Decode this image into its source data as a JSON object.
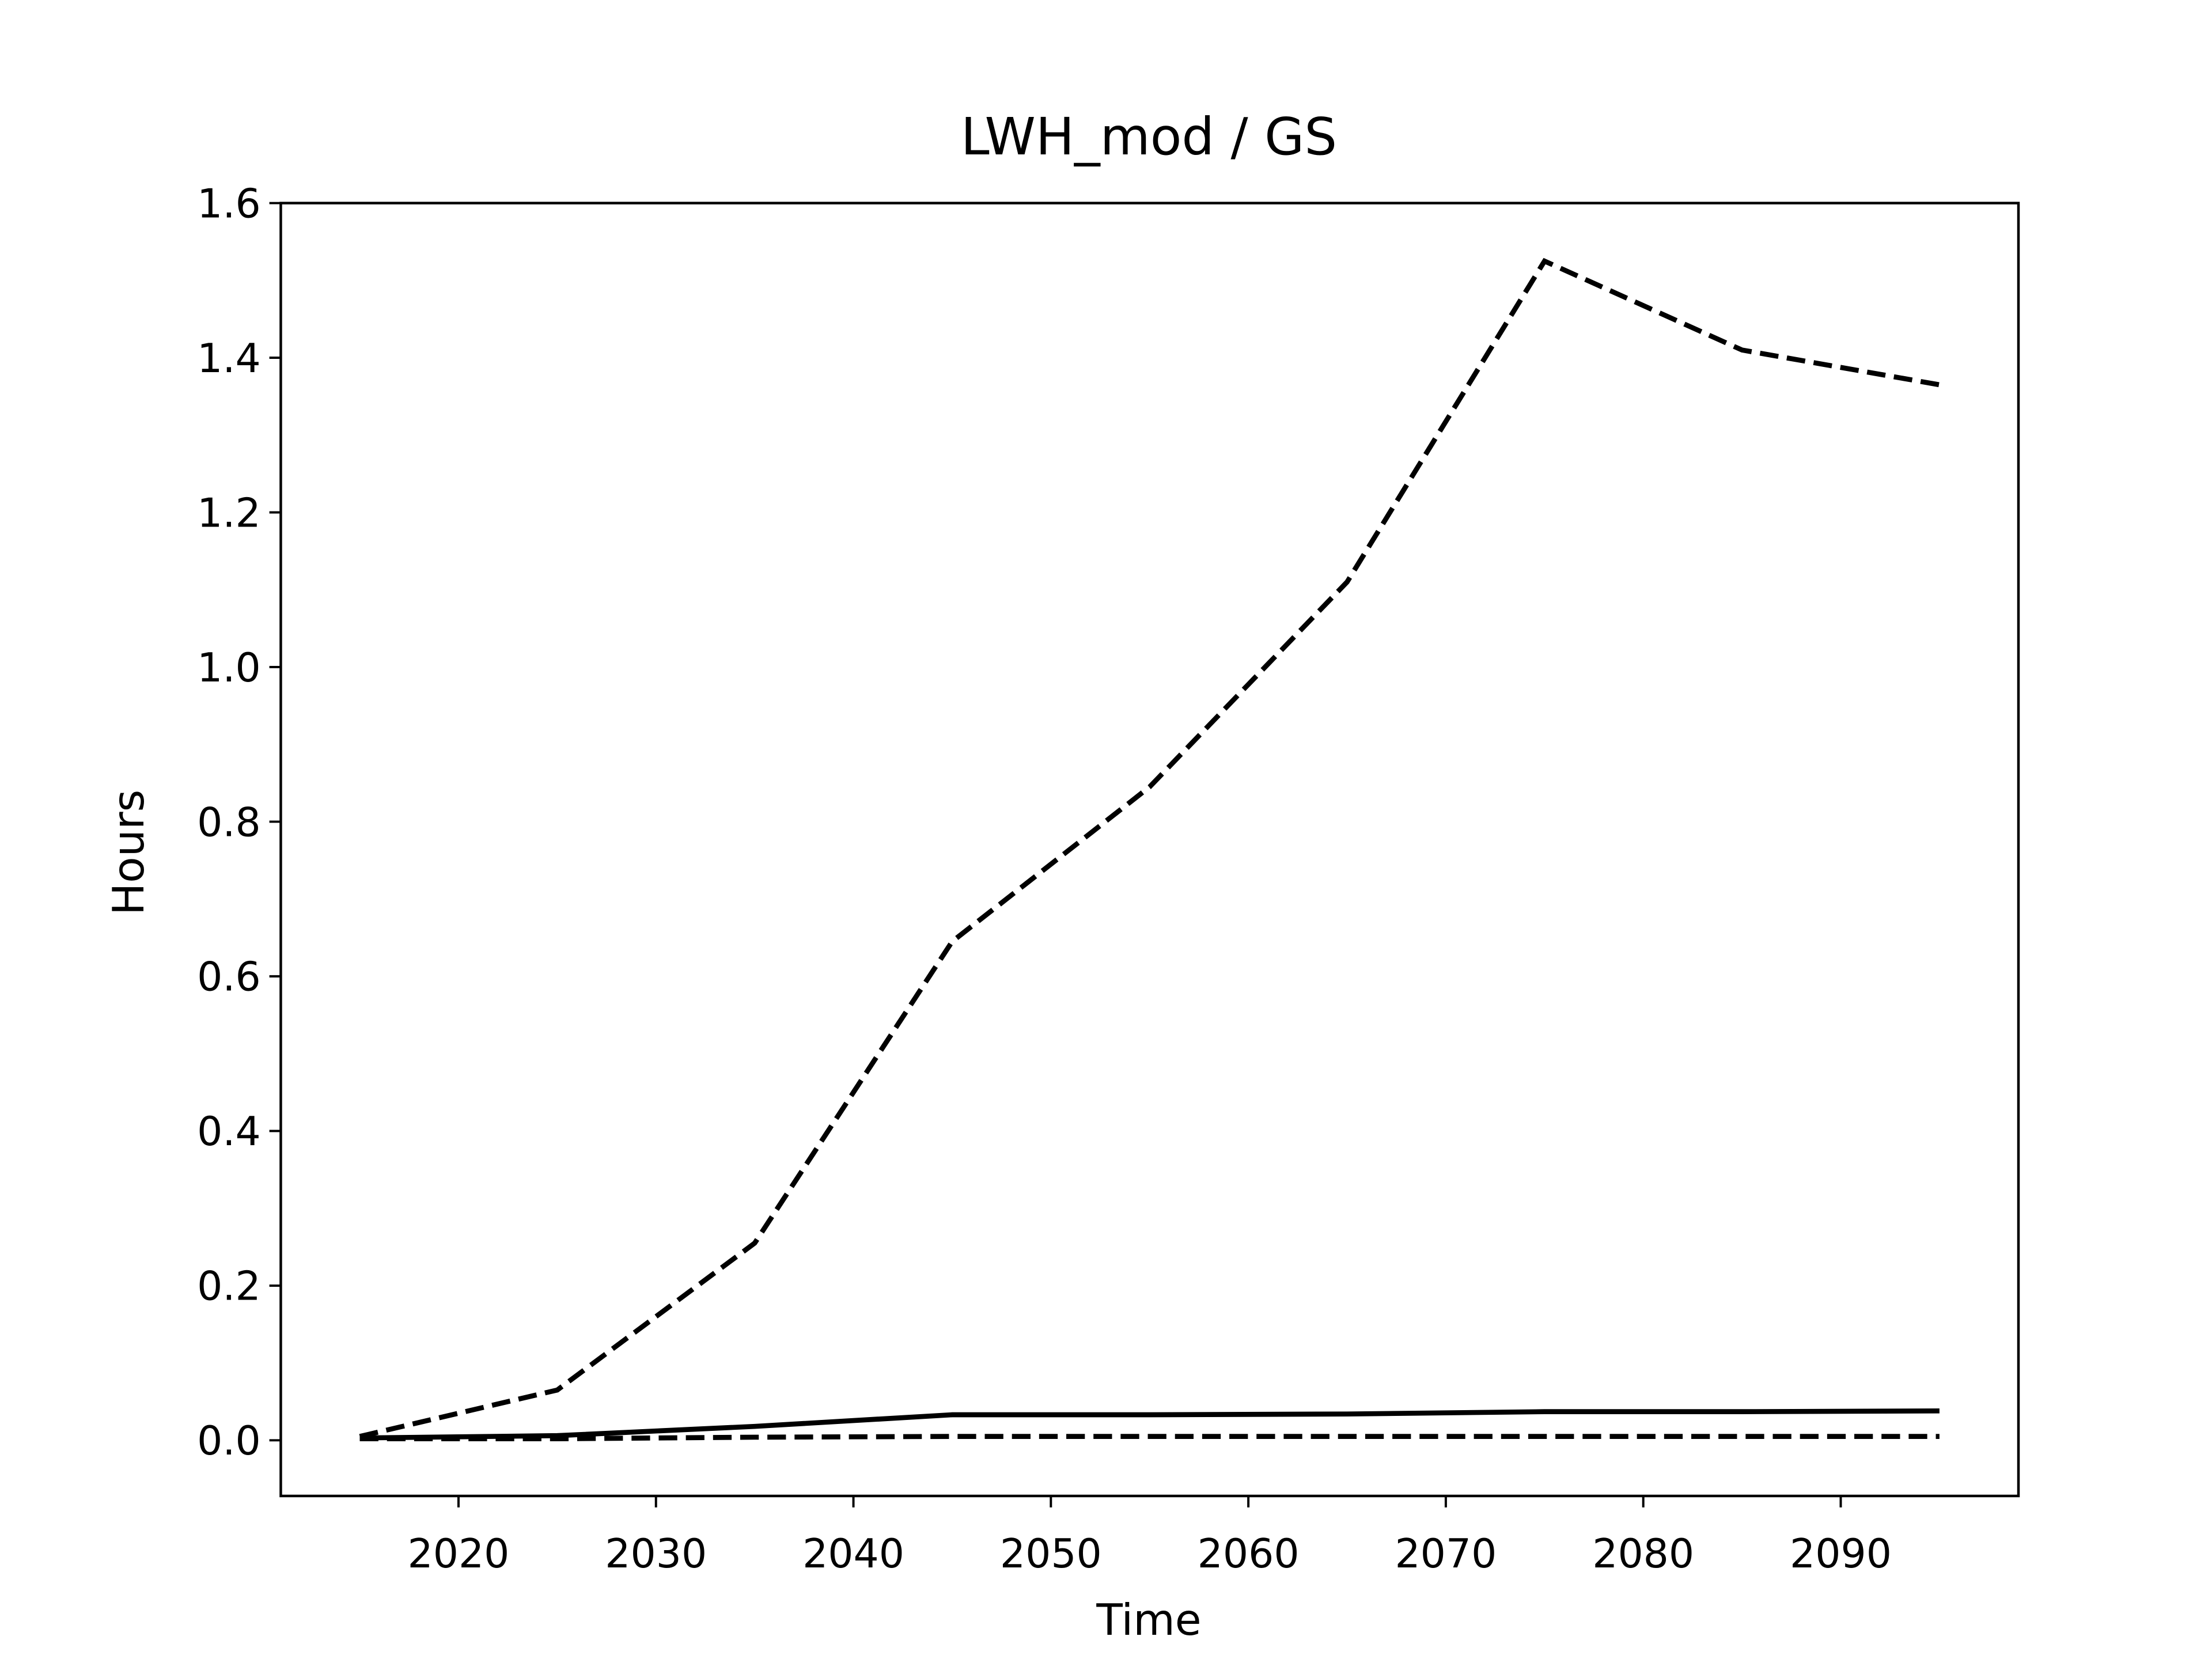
{
  "chart_data": {
    "type": "line",
    "title": "LWH_mod / GS",
    "xlabel": "Time",
    "ylabel": "Hours",
    "x": [
      2015,
      2025,
      2035,
      2045,
      2055,
      2065,
      2075,
      2085,
      2095
    ],
    "series": [
      {
        "color": "#000000",
        "dash": "dashed",
        "values": [
          0.005,
          0.065,
          0.255,
          0.645,
          0.845,
          1.11,
          1.525,
          1.41,
          1.365
        ]
      },
      {
        "color": "#000000",
        "dash": "solid",
        "values": [
          0.003,
          0.006,
          0.018,
          0.033,
          0.033,
          0.034,
          0.037,
          0.037,
          0.038
        ]
      },
      {
        "color": "#000000",
        "dash": "dashed",
        "values": [
          0.002,
          0.002,
          0.004,
          0.005,
          0.005,
          0.005,
          0.005,
          0.005,
          0.005
        ]
      }
    ],
    "xlim": [
      2011,
      2099
    ],
    "xticks": [
      2020,
      2030,
      2040,
      2050,
      2060,
      2070,
      2080,
      2090
    ],
    "ylim": [
      -0.072,
      1.6
    ],
    "yticks": [
      {
        "value": 0,
        "label": "0.0"
      },
      0.2,
      0.4,
      0.6,
      0.8,
      {
        "value": 1,
        "label": "1.0"
      },
      1.2,
      1.4,
      1.6
    ]
  }
}
